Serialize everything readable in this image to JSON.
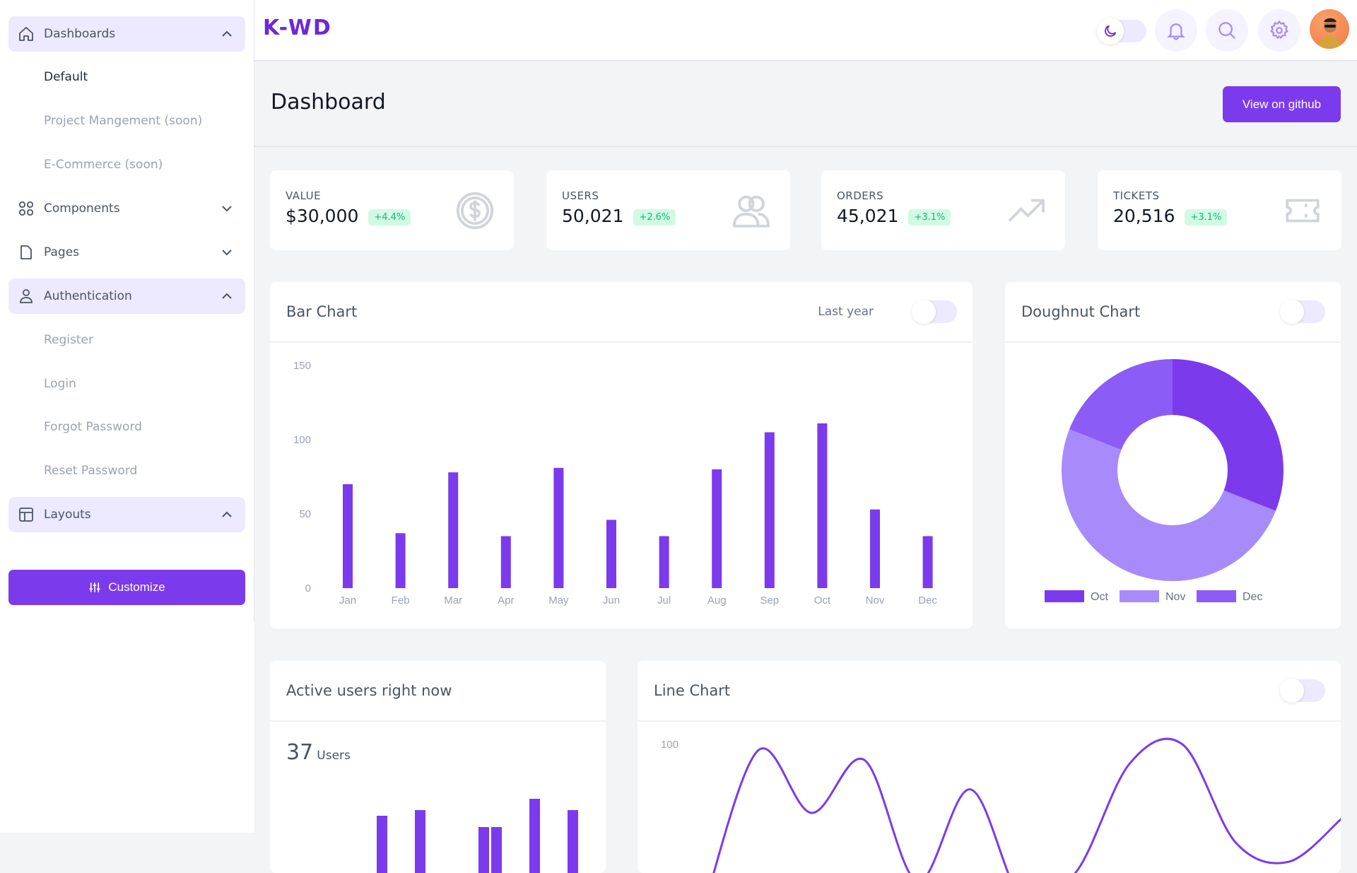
{
  "sidebar": {
    "dashboards": "Dashboards",
    "default": "Default",
    "project": "Project Mangement (soon)",
    "ecommerce": "E-Commerce (soon)",
    "components": "Components",
    "pages": "Pages",
    "authentication": "Authentication",
    "register": "Register",
    "login": "Login",
    "forgot": "Forgot Password",
    "reset": "Reset Password",
    "layouts": "Layouts",
    "customize": "Customize"
  },
  "header": {
    "logo": "K-WD"
  },
  "page": {
    "title": "Dashboard",
    "github": "View on github"
  },
  "stats": [
    {
      "label": "VALUE",
      "value": "$30,000",
      "change": "+4.4%",
      "icon": "dollar-icon"
    },
    {
      "label": "USERS",
      "value": "50,021",
      "change": "+2.6%",
      "icon": "users-icon"
    },
    {
      "label": "ORDERS",
      "value": "45,021",
      "change": "+3.1%",
      "icon": "trending-up-icon"
    },
    {
      "label": "TICKETS",
      "value": "20,516",
      "change": "+3.1%",
      "icon": "ticket-icon"
    }
  ],
  "colors": {
    "accent": "#7c3aed",
    "oct": "#7c3aed",
    "nov": "#a78bfa",
    "dec": "#8b5cf6",
    "positive": "#10b981"
  },
  "bar_card": {
    "title": "Bar Chart",
    "toggle_label": "Last year",
    "toggle_on": false
  },
  "doughnut_card": {
    "title": "Doughnut Chart",
    "toggle_on": false
  },
  "active_card": {
    "title": "Active users right now",
    "count": "37",
    "unit": "Users"
  },
  "line_card": {
    "title": "Line Chart",
    "toggle_on": false
  },
  "chart_data": [
    {
      "type": "bar",
      "categories": [
        "Jan",
        "Feb",
        "Mar",
        "Apr",
        "May",
        "Jun",
        "Jul",
        "Aug",
        "Sep",
        "Oct",
        "Nov",
        "Dec"
      ],
      "values": [
        70,
        37,
        78,
        35,
        81,
        46,
        35,
        80,
        105,
        111,
        53,
        35
      ],
      "yticks": [
        "0",
        "50",
        "100",
        "150"
      ],
      "ylim": [
        0,
        150
      ],
      "grid": false
    },
    {
      "type": "pie",
      "variant": "doughnut",
      "categories": [
        "Oct",
        "Nov",
        "Dec"
      ],
      "values": [
        31,
        50,
        19
      ],
      "legend": "bottom"
    },
    {
      "type": "bar",
      "values": [
        12,
        0,
        0,
        13,
        0,
        0,
        0,
        0,
        10,
        10,
        0,
        0,
        15,
        0,
        0,
        13
      ]
    },
    {
      "type": "line",
      "values": [
        20,
        97,
        65,
        92,
        30,
        77,
        20,
        35,
        90,
        100,
        50,
        40,
        62
      ],
      "yticks": [
        "100"
      ],
      "grid": false
    }
  ]
}
